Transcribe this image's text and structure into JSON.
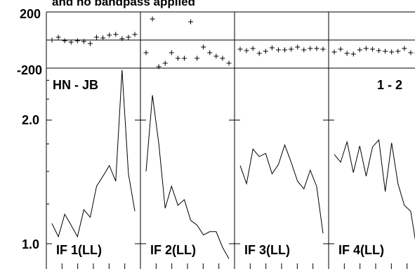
{
  "title": "and no bandpass applied",
  "baseline_label": "HN - JB",
  "page_label": "1 - 2",
  "phase_axis": {
    "ticks": [
      200,
      -200
    ],
    "tick_labels": [
      "200",
      "-200"
    ],
    "ylim": [
      -200,
      200
    ]
  },
  "amp_axis": {
    "ticks": [
      2.0,
      1.0
    ],
    "tick_labels": [
      "2.0",
      "1.0"
    ],
    "scale": "log",
    "ylim": [
      0.9,
      2.8
    ]
  },
  "chart_data": [
    {
      "type": "line",
      "panel": "IF 1(LL)",
      "x": [
        1,
        2,
        3,
        4,
        5,
        6,
        7,
        8,
        9,
        10,
        11,
        12,
        13,
        14
      ],
      "phase": [
        0,
        20,
        -5,
        -15,
        -5,
        -10,
        -25,
        20,
        15,
        35,
        40,
        10,
        20,
        40
      ],
      "amplitude": [
        1.12,
        1.04,
        1.18,
        1.11,
        1.04,
        1.21,
        1.16,
        1.38,
        1.46,
        1.55,
        1.42,
        2.65,
        1.48,
        1.2
      ]
    },
    {
      "type": "line",
      "panel": "IF 2(LL)",
      "x": [
        1,
        2,
        3,
        4,
        5,
        6,
        7,
        8,
        9,
        10,
        11,
        12,
        13,
        14
      ],
      "phase": [
        -90,
        150,
        -190,
        -165,
        -90,
        -130,
        -130,
        130,
        -130,
        -50,
        -90,
        -115,
        -130,
        -165
      ],
      "amplitude": [
        1.5,
        2.3,
        1.75,
        1.22,
        1.38,
        1.24,
        1.28,
        1.14,
        1.11,
        1.05,
        1.07,
        1.07,
        0.98,
        0.92
      ]
    },
    {
      "type": "line",
      "panel": "IF 3(LL)",
      "x": [
        1,
        2,
        3,
        4,
        5,
        6,
        7,
        8,
        9,
        10,
        11,
        12,
        13,
        14
      ],
      "phase": [
        -65,
        -75,
        -60,
        -95,
        -80,
        -55,
        -70,
        -70,
        -65,
        -50,
        -70,
        -60,
        -60,
        -65
      ],
      "amplitude": [
        1.55,
        1.4,
        1.7,
        1.63,
        1.66,
        1.48,
        1.56,
        1.74,
        1.58,
        1.42,
        1.36,
        1.51,
        1.38,
        1.06
      ]
    },
    {
      "type": "line",
      "panel": "IF 4(LL)",
      "x": [
        1,
        2,
        3,
        4,
        5,
        6,
        7,
        8,
        9,
        10,
        11,
        12,
        13,
        14
      ],
      "phase": [
        -85,
        -65,
        -95,
        -100,
        -70,
        -60,
        -65,
        -75,
        -80,
        -85,
        -80,
        -60,
        -90,
        -95
      ],
      "amplitude": [
        1.65,
        1.58,
        1.77,
        1.49,
        1.73,
        1.46,
        1.72,
        1.79,
        1.34,
        1.76,
        1.4,
        1.24,
        1.2,
        0.96
      ]
    }
  ]
}
